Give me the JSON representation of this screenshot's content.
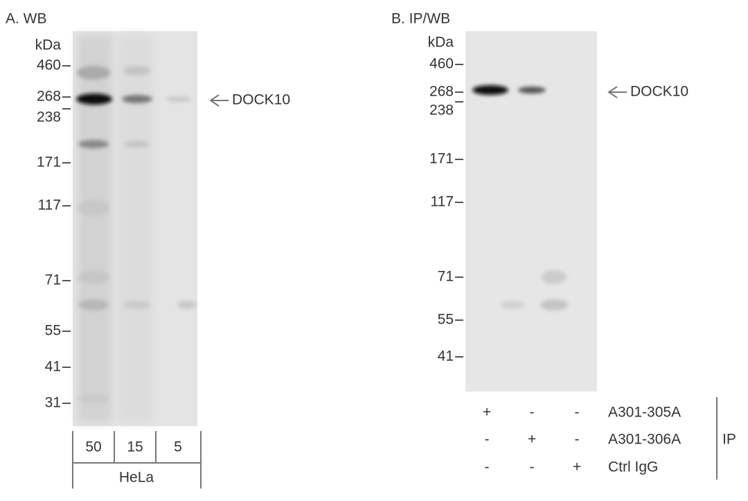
{
  "panel_a": {
    "title": "A. WB",
    "unit": "kDa",
    "markers": [
      "460",
      "268",
      "238",
      "171",
      "117",
      "71",
      "55",
      "41",
      "31"
    ],
    "band_label": "DOCK10",
    "lanes": [
      "50",
      "15",
      "5"
    ],
    "sample": "HeLa"
  },
  "panel_b": {
    "title": "B. IP/WB",
    "unit": "kDa",
    "markers": [
      "460",
      "268",
      "238",
      "171",
      "117",
      "71",
      "55",
      "41"
    ],
    "band_label": "DOCK10",
    "ip_rows": [
      {
        "signs": [
          "+",
          "-",
          "-"
        ],
        "label": "A301-305A"
      },
      {
        "signs": [
          "-",
          "+",
          "-"
        ],
        "label": "A301-306A"
      },
      {
        "signs": [
          "-",
          "-",
          "+"
        ],
        "label": "Ctrl IgG"
      }
    ],
    "ip_label": "IP"
  }
}
